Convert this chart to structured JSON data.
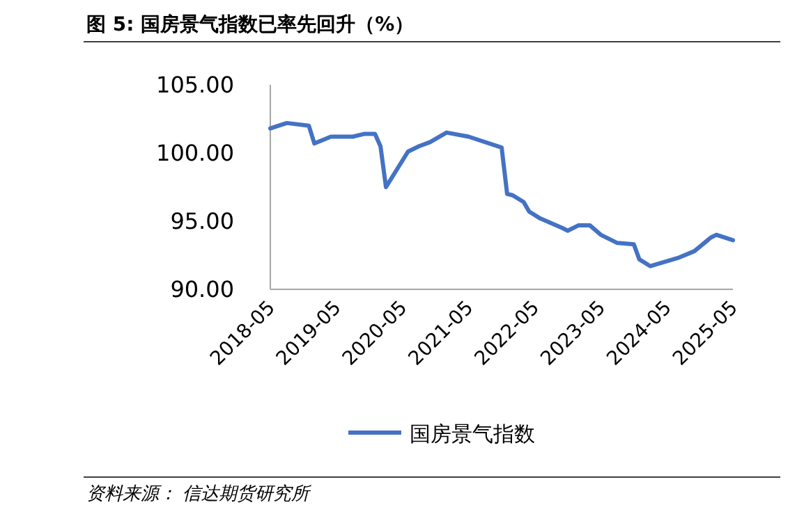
{
  "chart_data": {
    "type": "line",
    "title": "图 5: 国房景气指数已率先回升（%）",
    "x": [
      "2018-05",
      "2018-08",
      "2018-12",
      "2019-01",
      "2019-04",
      "2019-08",
      "2019-10",
      "2019-12",
      "2020-01",
      "2020-02",
      "2020-04",
      "2020-06",
      "2020-08",
      "2020-10",
      "2021-01",
      "2021-05",
      "2021-11",
      "2021-12",
      "2022-01",
      "2022-03",
      "2022-04",
      "2022-06",
      "2022-10",
      "2022-11",
      "2023-01",
      "2023-03",
      "2023-05",
      "2023-08",
      "2023-11",
      "2023-12",
      "2024-02",
      "2024-07",
      "2024-10",
      "2025-01",
      "2025-02",
      "2025-05"
    ],
    "series": [
      {
        "name": "国房景气指数",
        "color": "#4472c4",
        "values": [
          101.8,
          102.2,
          102.0,
          100.7,
          101.2,
          101.2,
          101.4,
          101.4,
          100.5,
          97.5,
          98.8,
          100.1,
          100.5,
          100.8,
          101.5,
          101.2,
          100.4,
          97.0,
          96.9,
          96.4,
          95.7,
          95.2,
          94.5,
          94.3,
          94.7,
          94.7,
          94.0,
          93.4,
          93.3,
          92.2,
          91.7,
          92.3,
          92.8,
          93.8,
          94.0,
          93.6
        ]
      }
    ],
    "xlim": [
      "2018-05",
      "2025-05"
    ],
    "xticks": [
      "2018-05",
      "2019-05",
      "2020-05",
      "2021-05",
      "2022-05",
      "2023-05",
      "2024-05",
      "2025-05"
    ],
    "ylim": [
      90,
      105
    ],
    "yticks": [
      {
        "value": 90,
        "label": "90.00"
      },
      {
        "value": 95,
        "label": "95.00"
      },
      {
        "value": 100,
        "label": "100.00"
      },
      {
        "value": 105,
        "label": "105.00"
      }
    ],
    "legend": "bottom",
    "grid": false,
    "annotations": [
      "资料来源： 信达期货研究所"
    ]
  }
}
